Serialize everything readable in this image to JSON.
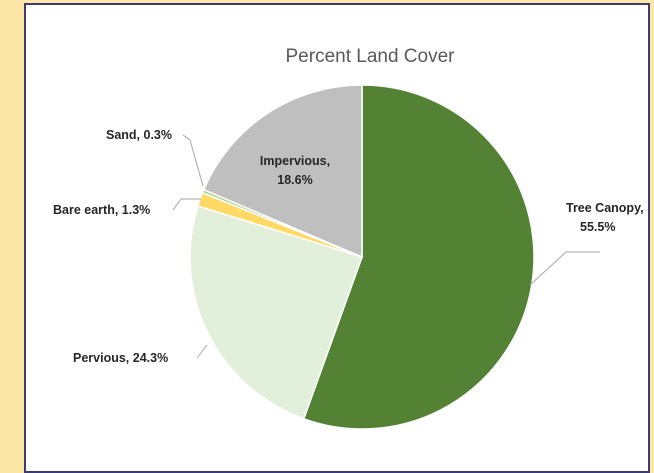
{
  "chart_data": {
    "type": "pie",
    "title": "Percent Land Cover",
    "slices": [
      {
        "label": "Tree Canopy, 55.5%",
        "lines": [
          "Tree Canopy,",
          "55.5%"
        ],
        "value": 55.5,
        "color": "#548235"
      },
      {
        "label": "Pervious, 24.3%",
        "lines": [
          "Pervious, 24.3%"
        ],
        "value": 24.3,
        "color": "#e2efda"
      },
      {
        "label": "Bare earth, 1.3%",
        "lines": [
          "Bare earth, 1.3%"
        ],
        "value": 1.3,
        "color": "#ffd966"
      },
      {
        "label": "Sand, 0.3%",
        "lines": [
          "Sand, 0.3%"
        ],
        "value": 0.3,
        "color": "#a9d18e"
      },
      {
        "label": "Impervious, 18.6%",
        "lines": [
          "Impervious,",
          "18.6%"
        ],
        "value": 18.6,
        "color": "#bfbfbf"
      }
    ],
    "legend": "none"
  }
}
